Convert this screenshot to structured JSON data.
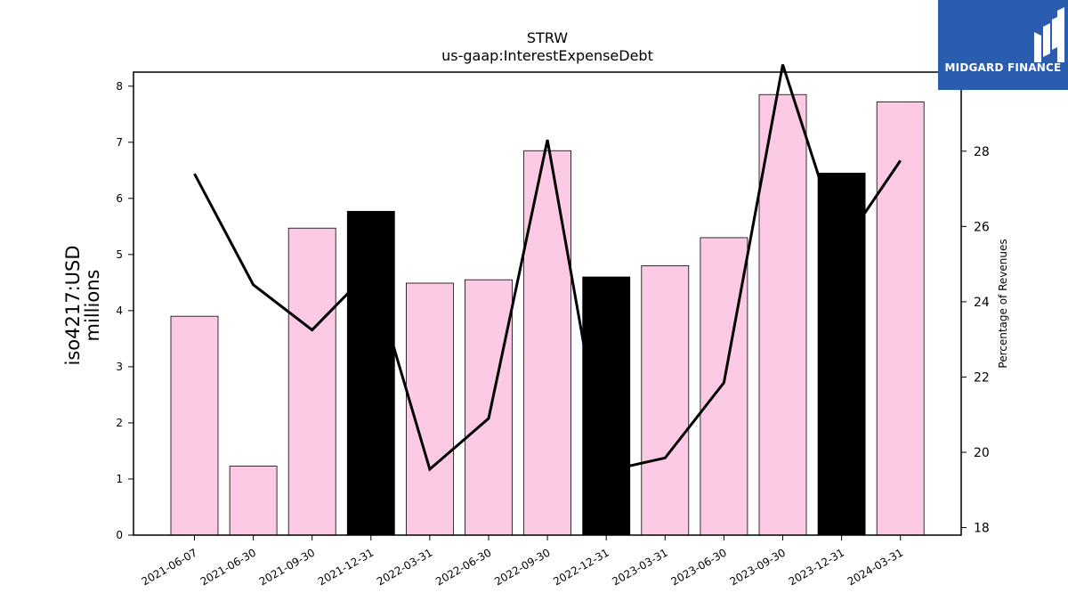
{
  "logo": {
    "text": "MIDGARD FINANCE",
    "background": "#2a5caf"
  },
  "chart_data": {
    "type": "bar",
    "title": "STRW",
    "subtitle": "us-gaap:InterestExpenseDebt",
    "ylabel_left": "iso4217:USD\nmillions",
    "ylabel_right": "Percentage of Revenues",
    "categories": [
      "2021-06-07",
      "2021-06-30",
      "2021-09-30",
      "2021-12-31",
      "2022-03-31",
      "2022-06-30",
      "2022-09-30",
      "2022-12-31",
      "2023-03-31",
      "2023-06-30",
      "2023-09-30",
      "2023-12-31",
      "2024-03-31"
    ],
    "bar_values": [
      3.9,
      1.23,
      5.47,
      5.77,
      4.49,
      4.55,
      6.85,
      4.6,
      4.8,
      5.3,
      7.85,
      6.45,
      7.72
    ],
    "bar_colors": [
      "#fccae4",
      "#fccae4",
      "#fccae4",
      "#000000",
      "#fccae4",
      "#fccae4",
      "#fccae4",
      "#000000",
      "#fccae4",
      "#fccae4",
      "#fccae4",
      "#000000",
      "#fccae4"
    ],
    "line_values": [
      27.4,
      24.45,
      23.25,
      24.85,
      19.55,
      20.9,
      28.3,
      19.5,
      19.85,
      21.85,
      30.3,
      25.45,
      27.75
    ],
    "line_color": "#000000",
    "ylim_left": [
      0,
      8.25
    ],
    "ylim_right": [
      17.8,
      30.1
    ],
    "yticks_left": [
      0,
      1,
      2,
      3,
      4,
      5,
      6,
      7,
      8
    ],
    "yticks_right": [
      18,
      20,
      22,
      24,
      26,
      28
    ],
    "grid": false
  }
}
